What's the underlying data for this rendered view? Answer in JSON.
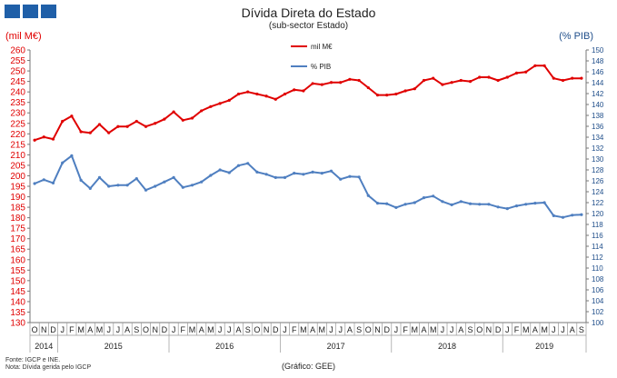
{
  "header": {
    "title": "Dívida Direta do Estado",
    "subtitle": "(sub-sector Estado)",
    "unit_left": "(mil M€)",
    "unit_right": "(% PIB)"
  },
  "footer": {
    "note1": "Fonte: IGCP e INE.",
    "note2": "Nota: Dívida gerida pelo IGCP",
    "source": "(Gráfico: GEE)"
  },
  "colors": {
    "red": "#e00000",
    "blue": "#4f7fc0",
    "logo": "#1f5fa8",
    "axis_left": "#e00000",
    "axis_right": "#1f4e8a"
  },
  "chart_data": {
    "type": "line",
    "x": [
      "O",
      "N",
      "D",
      "J",
      "F",
      "M",
      "A",
      "M",
      "J",
      "J",
      "A",
      "S",
      "O",
      "N",
      "D",
      "J",
      "F",
      "M",
      "A",
      "M",
      "J",
      "J",
      "A",
      "S",
      "O",
      "N",
      "D",
      "J",
      "F",
      "M",
      "A",
      "M",
      "J",
      "J",
      "A",
      "S",
      "O",
      "N",
      "D",
      "J",
      "F",
      "M",
      "A",
      "M",
      "J",
      "J",
      "A",
      "S",
      "O",
      "N",
      "D",
      "J",
      "F",
      "M",
      "A",
      "M",
      "J",
      "J",
      "A",
      "S"
    ],
    "years": [
      {
        "label": "2014",
        "start": 0,
        "end": 2
      },
      {
        "label": "2015",
        "start": 3,
        "end": 14
      },
      {
        "label": "2016",
        "start": 15,
        "end": 26
      },
      {
        "label": "2017",
        "start": 27,
        "end": 38
      },
      {
        "label": "2018",
        "start": 39,
        "end": 50
      },
      {
        "label": "2019",
        "start": 51,
        "end": 59
      }
    ],
    "ylim_left": [
      130,
      260
    ],
    "ylim_right": [
      100,
      150
    ],
    "ytick_step_left": 5,
    "ytick_step_right": 2,
    "series": [
      {
        "name": "mil M€",
        "axis": "left",
        "color": "#e00000",
        "values": [
          217.0,
          218.5,
          217.5,
          226.0,
          228.5,
          221.0,
          220.5,
          224.5,
          220.5,
          223.5,
          223.5,
          226.0,
          223.5,
          225.0,
          227.0,
          230.5,
          226.5,
          227.5,
          231.0,
          233.0,
          234.5,
          236.0,
          239.0,
          240.0,
          239.0,
          238.0,
          236.5,
          239.0,
          241.0,
          240.5,
          244.0,
          243.5,
          244.5,
          244.5,
          246.0,
          245.5,
          242.0,
          238.5,
          238.5,
          239.0,
          240.5,
          241.5,
          245.5,
          246.5,
          243.5,
          244.5,
          245.5,
          245.0,
          247.0,
          247.0,
          245.5,
          247.0,
          249.0,
          249.5,
          252.5,
          252.5,
          246.5,
          245.5,
          246.5,
          246.5
        ]
      },
      {
        "name": "% PIB",
        "axis": "right",
        "color": "#4f7fc0",
        "values": [
          125.5,
          126.2,
          125.6,
          129.3,
          130.6,
          126.1,
          124.6,
          126.6,
          125.0,
          125.2,
          125.2,
          126.4,
          124.3,
          125.0,
          125.8,
          126.6,
          124.8,
          125.2,
          125.8,
          127.0,
          128.0,
          127.5,
          128.8,
          129.2,
          127.6,
          127.2,
          126.6,
          126.6,
          127.4,
          127.2,
          127.6,
          127.4,
          127.8,
          126.3,
          126.8,
          126.7,
          123.3,
          121.9,
          121.8,
          121.1,
          121.7,
          122.0,
          122.9,
          123.2,
          122.2,
          121.6,
          122.2,
          121.8,
          121.7,
          121.7,
          121.2,
          120.9,
          121.4,
          121.7,
          121.9,
          122.0,
          119.6,
          119.3,
          119.7,
          119.8
        ]
      }
    ]
  }
}
